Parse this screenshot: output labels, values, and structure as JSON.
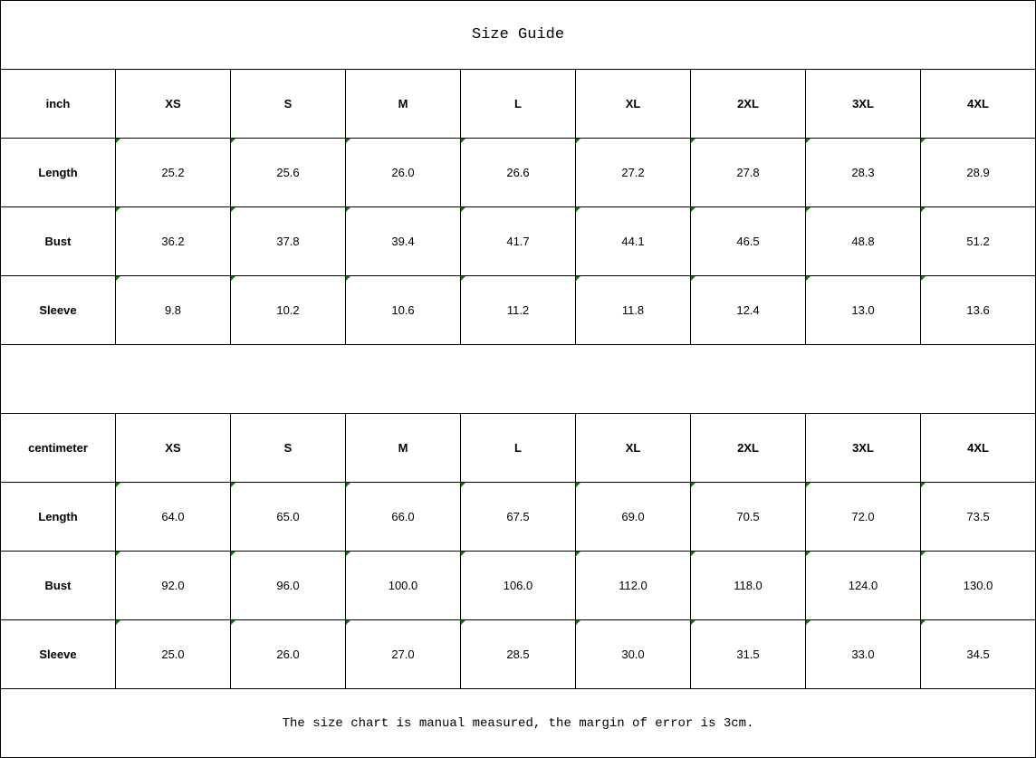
{
  "title": "Size Guide",
  "sizes": [
    "XS",
    "S",
    "M",
    "L",
    "XL",
    "2XL",
    "3XL",
    "4XL"
  ],
  "tables": [
    {
      "unit": "inch",
      "rows": [
        {
          "label": "Length",
          "values": [
            "25.2",
            "25.6",
            "26.0",
            "26.6",
            "27.2",
            "27.8",
            "28.3",
            "28.9"
          ]
        },
        {
          "label": "Bust",
          "values": [
            "36.2",
            "37.8",
            "39.4",
            "41.7",
            "44.1",
            "46.5",
            "48.8",
            "51.2"
          ]
        },
        {
          "label": "Sleeve",
          "values": [
            "9.8",
            "10.2",
            "10.6",
            "11.2",
            "11.8",
            "12.4",
            "13.0",
            "13.6"
          ]
        }
      ]
    },
    {
      "unit": "centimeter",
      "rows": [
        {
          "label": "Length",
          "values": [
            "64.0",
            "65.0",
            "66.0",
            "67.5",
            "69.0",
            "70.5",
            "72.0",
            "73.5"
          ]
        },
        {
          "label": "Bust",
          "values": [
            "92.0",
            "96.0",
            "100.0",
            "106.0",
            "112.0",
            "118.0",
            "124.0",
            "130.0"
          ]
        },
        {
          "label": "Sleeve",
          "values": [
            "25.0",
            "26.0",
            "27.0",
            "28.5",
            "30.0",
            "31.5",
            "33.0",
            "34.5"
          ]
        }
      ]
    }
  ],
  "note": "The size chart is manual measured, the margin of error is 3cm.",
  "colors": {
    "indicator": "#008000"
  }
}
